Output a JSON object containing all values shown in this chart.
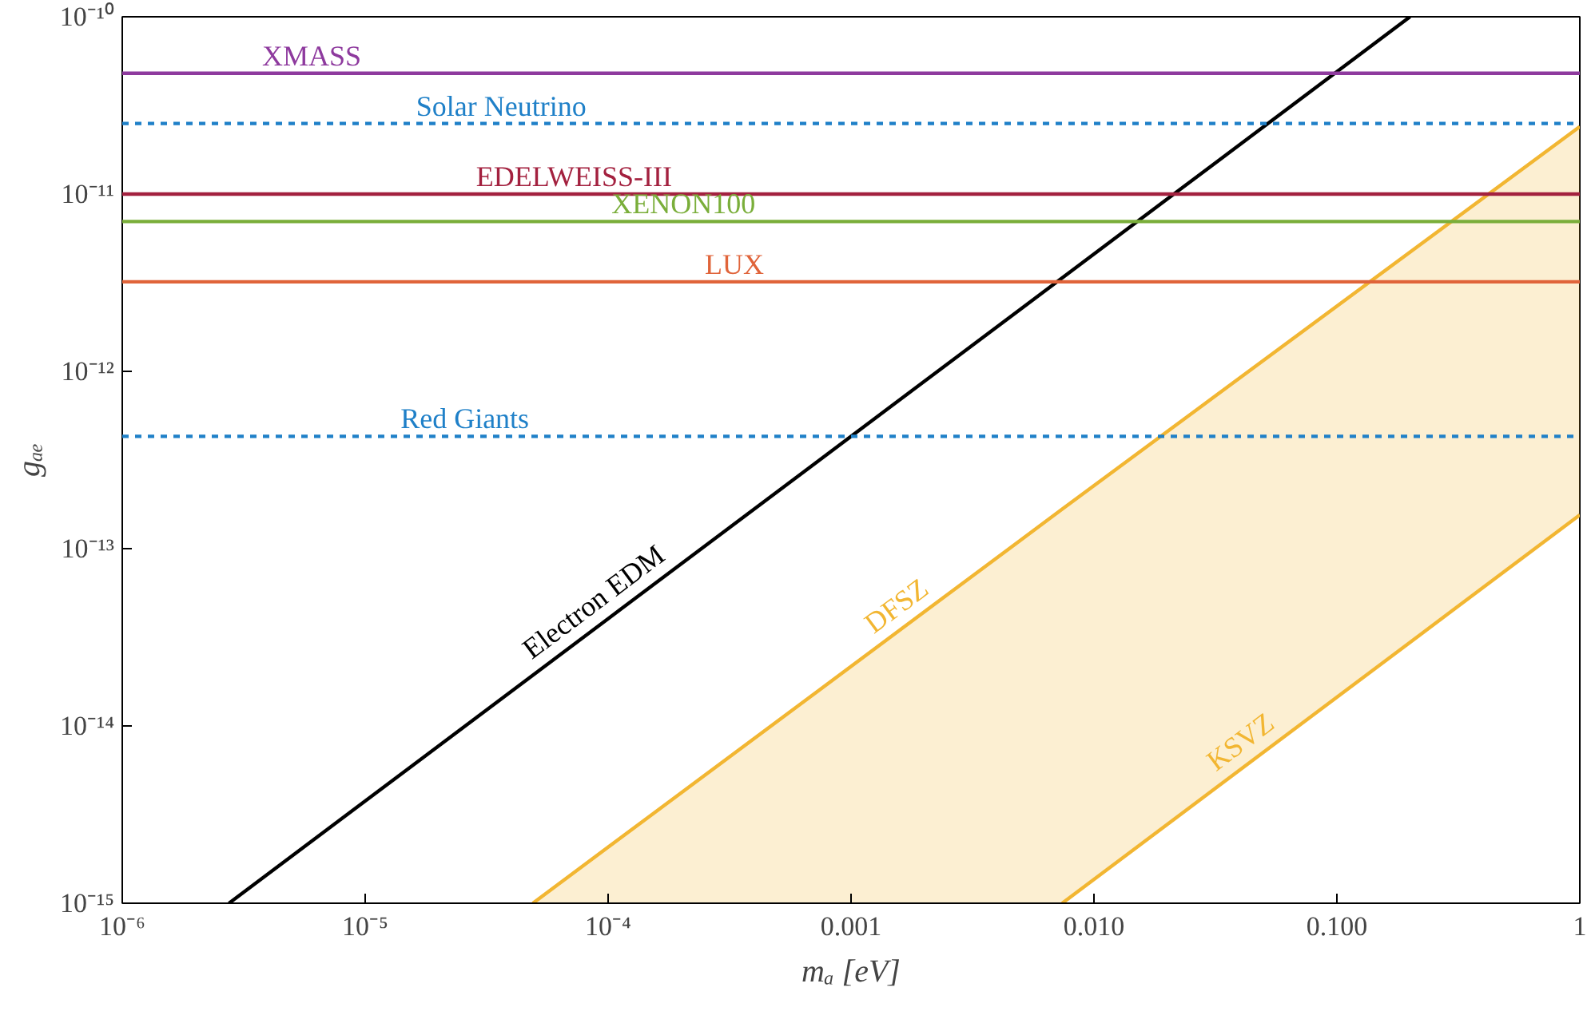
{
  "chart_data": {
    "type": "line",
    "xlabel": "mₐ [eV]",
    "ylabel": "gₐₑ",
    "log": "xy",
    "grid": false,
    "line_style": "solid",
    "marker": "none",
    "xlim": [
      1e-06,
      1
    ],
    "ylim": [
      1e-15,
      1e-10
    ],
    "xticks": [
      {
        "value": 1e-06,
        "label": "10⁻⁶"
      },
      {
        "value": 1e-05,
        "label": "10⁻⁵"
      },
      {
        "value": 0.0001,
        "label": "10⁻⁴"
      },
      {
        "value": 0.001,
        "label": "0.001"
      },
      {
        "value": 0.01,
        "label": "0.010"
      },
      {
        "value": 0.1,
        "label": "0.100"
      },
      1
    ],
    "yticks": [
      {
        "value": 1e-15,
        "label": "10⁻¹⁵"
      },
      {
        "value": 1e-14,
        "label": "10⁻¹⁴"
      },
      {
        "value": 1e-13,
        "label": "10⁻¹³"
      },
      {
        "value": 1e-12,
        "label": "10⁻¹²"
      },
      {
        "value": 1e-11,
        "label": "10⁻¹¹"
      },
      {
        "value": 1e-10,
        "label": "10⁻¹⁰"
      }
    ],
    "series": [
      {
        "name": "Electron EDM",
        "color": "#000000",
        "x": [
          2.75e-06,
          0.2
        ],
        "values": [
          1e-15,
          1e-10
        ]
      },
      {
        "name": "DFSZ",
        "color": "#f2b632",
        "x": [
          4.9e-05,
          0.0074,
          1
        ],
        "values": [
          1e-15,
          1.67e-13,
          2.4e-11
        ],
        "lower": [
          1e-15,
          1e-15,
          1.55e-13
        ],
        "upper": [
          1e-15,
          1.67e-13,
          2.4e-11
        ]
      },
      {
        "name": "KSVZ",
        "color": "#f2b632",
        "x": [
          0.0074,
          1
        ],
        "values": [
          1e-15,
          1.55e-13
        ]
      }
    ],
    "ref_lines": [
      {
        "axis": "y",
        "value": 4.8e-11,
        "label": "XMASS",
        "color": "#8e3a9e",
        "line_style": "solid"
      },
      {
        "axis": "y",
        "value": 2.5e-11,
        "label": "Solar Neutrino",
        "color": "#1f80c8",
        "line_style": "dashed"
      },
      {
        "axis": "y",
        "value": 1e-11,
        "label": "EDELWEISS-III",
        "color": "#a3213f",
        "line_style": "solid"
      },
      {
        "axis": "y",
        "value": 7e-12,
        "label": "XENON100",
        "color": "#7aae3a",
        "line_style": "solid"
      },
      {
        "axis": "y",
        "value": 3.2e-12,
        "label": "LUX",
        "color": "#e0643a",
        "line_style": "solid"
      },
      {
        "axis": "y",
        "value": 4.3e-13,
        "label": "Red Giants",
        "color": "#1f80c8",
        "line_style": "dashed"
      }
    ]
  }
}
